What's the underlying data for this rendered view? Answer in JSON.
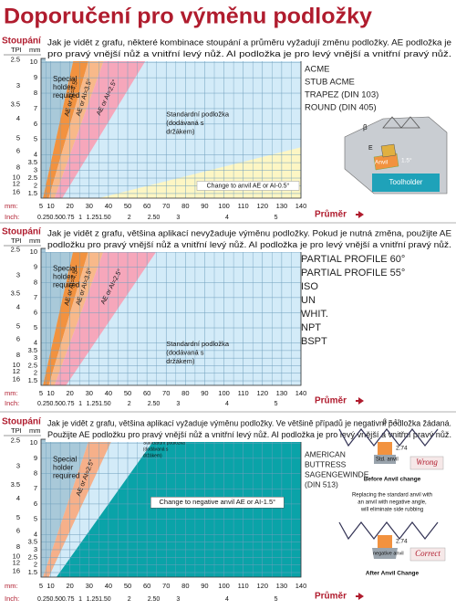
{
  "title": "Doporučení pro výměnu podložky",
  "panels": [
    {
      "description": [
        "Jak je vidět z grafu, některé kombinace stoupání a průměru vyžadují změnu podložky. AE podložka je",
        "pro pravý vnější nůž a vnitřní levý nůž. AI podložka je pro levý vnější a vnitřní pravý nůž."
      ],
      "axis": {
        "pitch_label": "Stoupání",
        "tpi_label": "TPI",
        "mm_label": "mm",
        "tpi": [
          "2.5",
          "3",
          "3.5",
          "4",
          "5",
          "6",
          "8",
          "10",
          "12",
          "16"
        ],
        "mm": [
          "10",
          "9",
          "8",
          "7",
          "6",
          "5",
          "4",
          "3.5",
          "3",
          "2.5",
          "2",
          "1.5"
        ],
        "diameter_mm_label": "mm:",
        "diameter_mm": [
          "5",
          "10",
          "20",
          "30",
          "40",
          "50",
          "60",
          "70",
          "80",
          "90",
          "100",
          "110",
          "120",
          "130",
          "140"
        ],
        "diameter_inch_label": "Inch:",
        "diameter_inch": [
          "0.25",
          "0.50",
          "0.75",
          "1",
          "1.25",
          "1.50",
          "2",
          "2.50",
          "3",
          "4",
          "5"
        ],
        "diameter_label": "Průměr"
      },
      "regions": {
        "special": [
          "Special",
          "holder",
          "required"
        ],
        "bands": [
          "AE or AI=4.5°",
          "AE or AI=3.5°",
          "AE or AI=2.5°"
        ],
        "standard": [
          "Standardní podložka",
          "(dodávaná s",
          "držákem)"
        ],
        "change": "Change to anvil AE or AI-0.5°"
      },
      "thread_types": [
        "ACME",
        "STUB ACME",
        "TRAPEZ (DIN 103)",
        "ROUND  (DIN  405)"
      ],
      "figure": {
        "beta": "β",
        "e": "E",
        "anvil": "Anvil",
        "angle": "1.5°",
        "toolholder": "Toolholder"
      }
    },
    {
      "description": [
        "Jak je vidět z grafu, většina aplikací nevyžaduje výměnu podložky. Pokud je nutná změna, použijte AE",
        "podložku pro pravý vnější nůž a vnitřní levý nůž. AI podložka je pro levý vnější a vnitřní pravý nůž."
      ],
      "axis": {
        "pitch_label": "Stoupání",
        "tpi_label": "TPI",
        "mm_label": "mm",
        "tpi": [
          "2.5",
          "3",
          "3.5",
          "4",
          "5",
          "6",
          "8",
          "10",
          "12",
          "16"
        ],
        "mm": [
          "10",
          "9",
          "8",
          "7",
          "6",
          "5",
          "4",
          "3.5",
          "3",
          "2.5",
          "2",
          "1.5"
        ],
        "diameter_mm_label": "mm:",
        "diameter_mm": [
          "5",
          "10",
          "20",
          "30",
          "40",
          "50",
          "60",
          "70",
          "80",
          "90",
          "100",
          "110",
          "120",
          "130",
          "140"
        ],
        "diameter_inch_label": "Inch:",
        "diameter_inch": [
          "0.25",
          "0.50",
          "0.75",
          "1",
          "1.25",
          "1.50",
          "2",
          "2.50",
          "3",
          "4",
          "5"
        ],
        "diameter_label": "Průměr"
      },
      "regions": {
        "special": [
          "Special",
          "holder",
          "required"
        ],
        "bands": [
          "AE or AI=4.5°",
          "AE or AI=3.5°",
          "AE or AI=2.5°"
        ],
        "standard": [
          "Standardní podložka",
          "(dodávaná s",
          "držákem)"
        ]
      },
      "thread_types": [
        "PARTIAL PROFILE 60°",
        "PARTIAL PROFILE 55°",
        "ISO",
        "UN",
        "WHIT.",
        "NPT",
        "BSPT"
      ]
    },
    {
      "description": [
        "Jak je vidět z grafu, většina aplikací vyžaduje výměnu podložky. Ve většině případů je negativní podložka žádaná.",
        "Použijte AE podložku pro pravý vnější nůž a vnitřní levý nůž. AI podložka je pro levý vnější a vnitřní pravý nůž."
      ],
      "axis": {
        "pitch_label": "Stoupání",
        "tpi_label": "TPI",
        "mm_label": "mm",
        "tpi": [
          "2.5",
          "3",
          "3.5",
          "4",
          "5",
          "6",
          "8",
          "10",
          "12",
          "16"
        ],
        "mm": [
          "10",
          "9",
          "8",
          "7",
          "6",
          "5",
          "4",
          "3.5",
          "3",
          "2.5",
          "2",
          "1.5"
        ],
        "diameter_mm_label": "mm:",
        "diameter_mm": [
          "5",
          "10",
          "20",
          "30",
          "40",
          "50",
          "60",
          "70",
          "80",
          "90",
          "100",
          "110",
          "120",
          "130",
          "140"
        ],
        "diameter_inch_label": "Inch:",
        "diameter_inch": [
          "0.25",
          "0.50",
          "0.75",
          "1",
          "1.25",
          "1.50",
          "2",
          "2.50",
          "3",
          "4",
          "5"
        ],
        "diameter_label": "Průměr"
      },
      "regions": {
        "special": [
          "Special",
          "holder",
          "required"
        ],
        "bands": [
          "AE or AI=2.5°"
        ],
        "standard": [
          "Standardní podložka",
          "(dodávaná s",
          "držákem)"
        ],
        "change": "Change to negative anvil AE or AI-1.5°"
      },
      "thread_types": [
        "AMERICAN",
        "BUTTRESS",
        "SAGENGEWINDE",
        "(DIN 513)"
      ],
      "figure": {
        "beta": "β = 1°",
        "wrong_gap": "2.74",
        "std_anvil": "Std. anvil",
        "wrong": "Wrong",
        "before": "Before Anvil change",
        "note": [
          "Replacing the standard anvil with",
          "an anvil with negative angle,",
          "will eliminate side rubbing"
        ],
        "correct_gap": "2.74",
        "neg_anvil": "negative anvil",
        "correct": "Correct",
        "after": "After Anvil Change"
      }
    }
  ]
}
